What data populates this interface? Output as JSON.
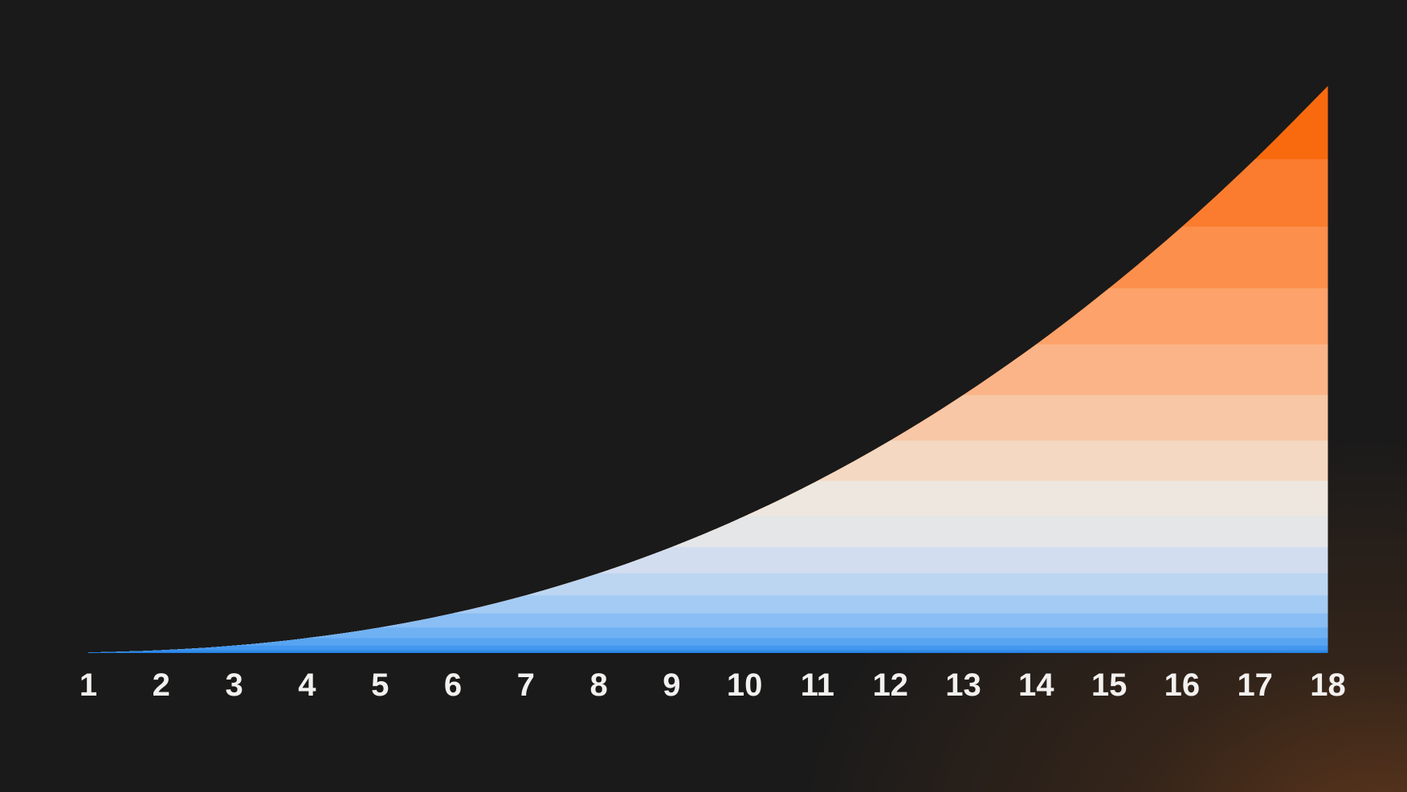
{
  "theme": {
    "background": "#1a1a1a",
    "glow_color": "#ff761a",
    "label_color": "#f3f1ef"
  },
  "chart_data": {
    "type": "area",
    "title": "",
    "xlabel": "",
    "ylabel": "",
    "categories": [
      "1",
      "2",
      "3",
      "4",
      "5",
      "6",
      "7",
      "8",
      "9",
      "10",
      "11",
      "12",
      "13",
      "14",
      "15",
      "16",
      "17",
      "18"
    ],
    "values": [
      0.09,
      0.49,
      1.31,
      2.63,
      4.5,
      7.0,
      10.17,
      14.06,
      18.68,
      24.12,
      30.37,
      37.48,
      45.5,
      54.44,
      64.33,
      75.19,
      87.08,
      100
    ],
    "value_unit": "percent_of_max",
    "ylim": [
      0,
      100
    ],
    "grid": false,
    "legend": false,
    "axis_lines": false,
    "style": "area filled with horizontal color strata; stratum i top edge sits at the curve value of tick i",
    "band_colors_bottom_to_top": [
      "#1a74da",
      "#2e8ae7",
      "#4397ee",
      "#58a4f1",
      "#70b1f3",
      "#8abef4",
      "#a4cbf4",
      "#bcd6f2",
      "#d2def0",
      "#e5e6e8",
      "#eee7df",
      "#f4d8c2",
      "#f8c7a5",
      "#fbb488",
      "#fca26a",
      "#fc8f4c",
      "#fb7c2e",
      "#f96a0e"
    ]
  }
}
